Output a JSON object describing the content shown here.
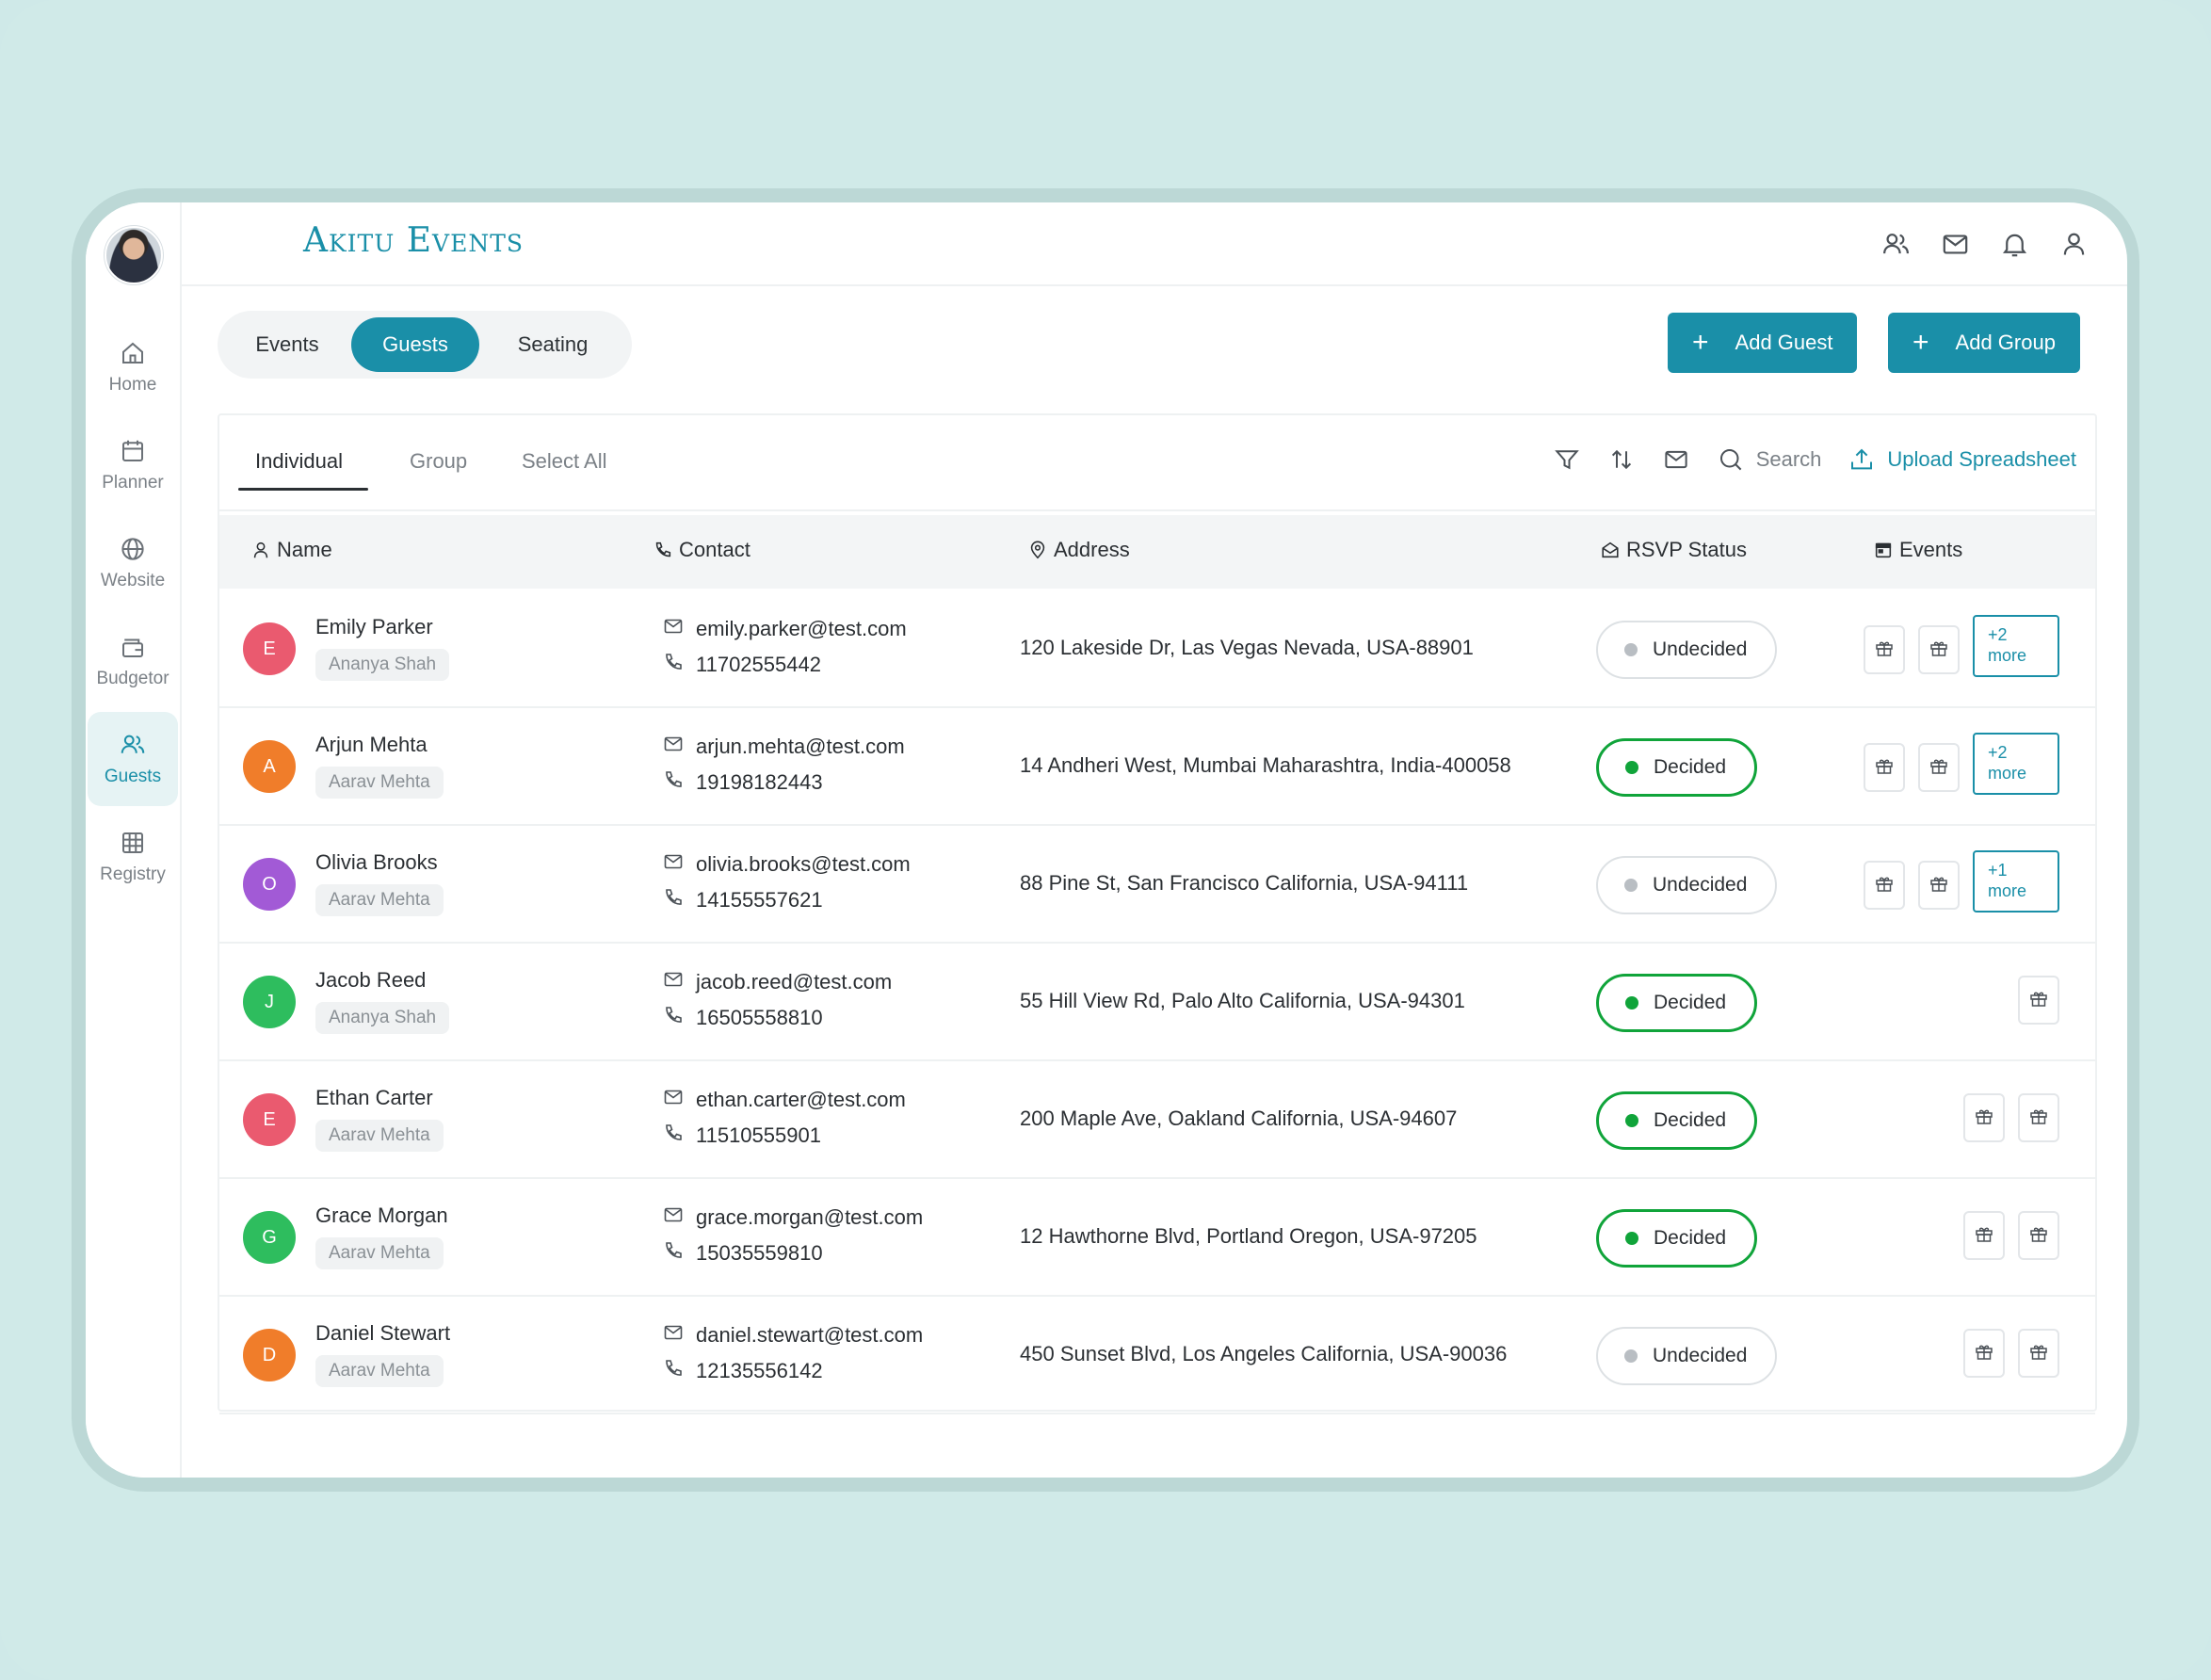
{
  "app": {
    "logo": "Akitu Events"
  },
  "sidebar": {
    "items": [
      {
        "label": "Home",
        "icon": "home-icon"
      },
      {
        "label": "Planner",
        "icon": "calendar-icon"
      },
      {
        "label": "Website",
        "icon": "globe-icon"
      },
      {
        "label": "Budgetor",
        "icon": "wallet-icon"
      },
      {
        "label": "Guests",
        "icon": "users-icon",
        "active": true
      },
      {
        "label": "Registry",
        "icon": "grid-icon"
      }
    ]
  },
  "header": {
    "icons": [
      "users-icon",
      "mail-icon",
      "bell-icon",
      "user-icon"
    ]
  },
  "tabs": [
    {
      "label": "Events"
    },
    {
      "label": "Guests",
      "active": true
    },
    {
      "label": "Seating"
    }
  ],
  "actions": {
    "add_guest": "Add Guest",
    "add_group": "Add Group"
  },
  "subtabs": [
    {
      "label": "Individual",
      "active": true
    },
    {
      "label": "Group"
    },
    {
      "label": "Select All"
    }
  ],
  "toolbar": {
    "search_label": "Search",
    "upload_label": "Upload Spreadsheet"
  },
  "columns": {
    "name": "Name",
    "contact": "Contact",
    "address": "Address",
    "rsvp": "RSVP Status",
    "events": "Events"
  },
  "colors": {
    "accent": "#1a8fa8",
    "decided": "#10a43a",
    "undecided": "#b9bec3"
  },
  "guests": [
    {
      "initial": "E",
      "color": "#ea5a6f",
      "name": "Emily Parker",
      "tag": "Ananya Shah",
      "email": "emily.parker@test.com",
      "phone": "11702555442",
      "address": "120 Lakeside Dr, Las Vegas Nevada, USA-88901",
      "rsvp": "Undecided",
      "gifts": 2,
      "more": "+2",
      "more_label": "more"
    },
    {
      "initial": "A",
      "color": "#f07d2a",
      "name": "Arjun Mehta",
      "tag": "Aarav Mehta",
      "email": "arjun.mehta@test.com",
      "phone": "19198182443",
      "address": "14 Andheri West, Mumbai Maharashtra, India-400058",
      "rsvp": "Decided",
      "gifts": 2,
      "more": "+2",
      "more_label": "more"
    },
    {
      "initial": "O",
      "color": "#a25ad6",
      "name": "Olivia Brooks",
      "tag": "Aarav Mehta",
      "email": "olivia.brooks@test.com",
      "phone": "14155557621",
      "address": "88 Pine St, San Francisco California, USA-94111",
      "rsvp": "Undecided",
      "gifts": 2,
      "more": "+1",
      "more_label": "more"
    },
    {
      "initial": "J",
      "color": "#2ebd5e",
      "name": "Jacob Reed",
      "tag": "Ananya Shah",
      "email": "jacob.reed@test.com",
      "phone": "16505558810",
      "address": "55 Hill View Rd, Palo Alto California, USA-94301",
      "rsvp": "Decided",
      "gifts": 1
    },
    {
      "initial": "E",
      "color": "#ea5a6f",
      "name": "Ethan Carter",
      "tag": "Aarav Mehta",
      "email": "ethan.carter@test.com",
      "phone": "11510555901",
      "address": "200 Maple Ave, Oakland California, USA-94607",
      "rsvp": "Decided",
      "gifts": 2
    },
    {
      "initial": "G",
      "color": "#2ebd5e",
      "name": "Grace Morgan",
      "tag": "Aarav Mehta",
      "email": "grace.morgan@test.com",
      "phone": "15035559810",
      "address": "12 Hawthorne Blvd, Portland Oregon, USA-97205",
      "rsvp": "Decided",
      "gifts": 2
    },
    {
      "initial": "D",
      "color": "#f07d2a",
      "name": "Daniel Stewart",
      "tag": "Aarav Mehta",
      "email": "daniel.stewart@test.com",
      "phone": "12135556142",
      "address": "450 Sunset Blvd, Los Angeles California, USA-90036",
      "rsvp": "Undecided",
      "gifts": 2
    }
  ]
}
